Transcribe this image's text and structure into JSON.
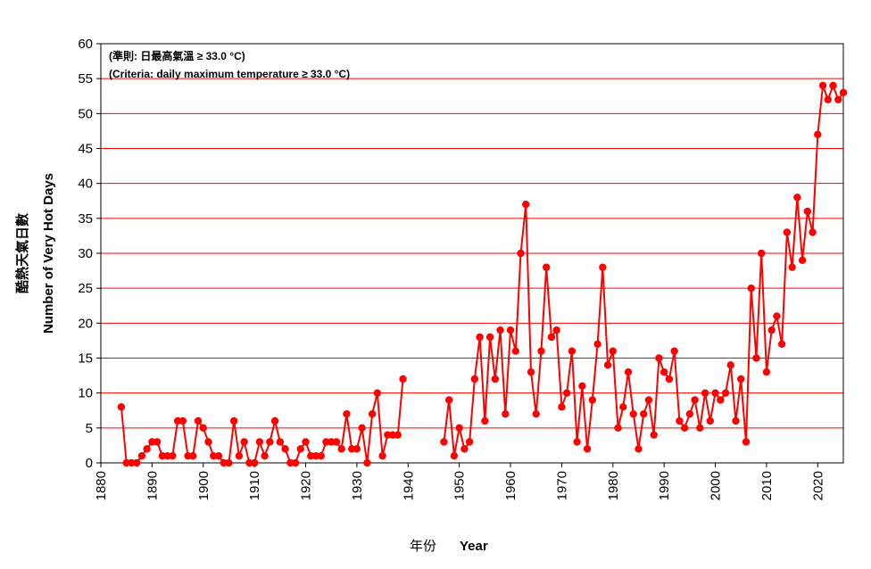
{
  "chart_data": {
    "type": "line",
    "ylabel_zh": "酷熱天氣日數",
    "ylabel_en": "Number of Very Hot Days",
    "xlabel_zh": "年份",
    "xlabel_en": "Year",
    "note_zh": "(準則: 日最高氣溫 ≥ 33.0 °C)",
    "note_en": "(Criteria: daily maximum temperature ≥ 33.0 °C)",
    "xlim": [
      1880,
      2025
    ],
    "ylim": [
      0,
      60
    ],
    "x_ticks": [
      1880,
      1890,
      1900,
      1910,
      1920,
      1930,
      1940,
      1950,
      1960,
      1970,
      1980,
      1990,
      2000,
      2010,
      2020
    ],
    "y_ticks": [
      0,
      5,
      10,
      15,
      20,
      25,
      30,
      35,
      40,
      45,
      50,
      55,
      60
    ],
    "grid": "horizontal",
    "series_color": "#ff0000",
    "series": [
      {
        "values": [
          [
            1884,
            8
          ],
          [
            1885,
            0
          ],
          [
            1886,
            0
          ],
          [
            1887,
            0
          ],
          [
            1888,
            1
          ],
          [
            1889,
            2
          ],
          [
            1890,
            3
          ],
          [
            1891,
            3
          ],
          [
            1892,
            1
          ],
          [
            1893,
            1
          ],
          [
            1894,
            1
          ],
          [
            1895,
            6
          ],
          [
            1896,
            6
          ],
          [
            1897,
            1
          ],
          [
            1898,
            1
          ],
          [
            1899,
            6
          ],
          [
            1900,
            5
          ],
          [
            1901,
            3
          ],
          [
            1902,
            1
          ],
          [
            1903,
            1
          ],
          [
            1904,
            0
          ],
          [
            1905,
            0
          ],
          [
            1906,
            6
          ],
          [
            1907,
            1
          ],
          [
            1908,
            3
          ],
          [
            1909,
            0
          ],
          [
            1910,
            0
          ],
          [
            1911,
            3
          ],
          [
            1912,
            1
          ],
          [
            1913,
            3
          ],
          [
            1914,
            6
          ],
          [
            1915,
            3
          ],
          [
            1916,
            2
          ],
          [
            1917,
            0
          ],
          [
            1918,
            0
          ],
          [
            1919,
            2
          ],
          [
            1920,
            3
          ],
          [
            1921,
            1
          ],
          [
            1922,
            1
          ],
          [
            1923,
            1
          ],
          [
            1924,
            3
          ],
          [
            1925,
            3
          ],
          [
            1926,
            3
          ],
          [
            1927,
            2
          ],
          [
            1928,
            7
          ],
          [
            1929,
            2
          ],
          [
            1930,
            2
          ],
          [
            1931,
            5
          ],
          [
            1932,
            0
          ],
          [
            1933,
            7
          ],
          [
            1934,
            10
          ],
          [
            1935,
            1
          ],
          [
            1936,
            4
          ],
          [
            1937,
            4
          ],
          [
            1938,
            4
          ],
          [
            1939,
            12
          ]
        ]
      },
      {
        "values": [
          [
            1947,
            3
          ],
          [
            1948,
            9
          ],
          [
            1949,
            1
          ],
          [
            1950,
            5
          ],
          [
            1951,
            2
          ],
          [
            1952,
            3
          ],
          [
            1953,
            12
          ],
          [
            1954,
            18
          ],
          [
            1955,
            6
          ],
          [
            1956,
            18
          ],
          [
            1957,
            12
          ],
          [
            1958,
            19
          ],
          [
            1959,
            7
          ],
          [
            1960,
            19
          ],
          [
            1961,
            16
          ],
          [
            1962,
            30
          ],
          [
            1963,
            37
          ],
          [
            1964,
            13
          ],
          [
            1965,
            7
          ],
          [
            1966,
            16
          ],
          [
            1967,
            28
          ],
          [
            1968,
            18
          ],
          [
            1969,
            19
          ],
          [
            1970,
            8
          ],
          [
            1971,
            10
          ],
          [
            1972,
            16
          ],
          [
            1973,
            3
          ],
          [
            1974,
            11
          ],
          [
            1975,
            2
          ],
          [
            1976,
            9
          ],
          [
            1977,
            17
          ],
          [
            1978,
            28
          ],
          [
            1979,
            14
          ],
          [
            1980,
            16
          ],
          [
            1981,
            5
          ],
          [
            1982,
            8
          ],
          [
            1983,
            13
          ],
          [
            1984,
            7
          ],
          [
            1985,
            2
          ],
          [
            1986,
            7
          ],
          [
            1987,
            9
          ],
          [
            1988,
            4
          ],
          [
            1989,
            15
          ],
          [
            1990,
            13
          ],
          [
            1991,
            12
          ],
          [
            1992,
            16
          ],
          [
            1993,
            6
          ],
          [
            1994,
            5
          ],
          [
            1995,
            7
          ],
          [
            1996,
            9
          ],
          [
            1997,
            5
          ],
          [
            1998,
            10
          ],
          [
            1999,
            6
          ],
          [
            2000,
            10
          ],
          [
            2001,
            9
          ],
          [
            2002,
            10
          ],
          [
            2003,
            14
          ],
          [
            2004,
            6
          ],
          [
            2005,
            12
          ],
          [
            2006,
            3
          ],
          [
            2007,
            25
          ],
          [
            2008,
            15
          ],
          [
            2009,
            30
          ],
          [
            2010,
            13
          ],
          [
            2011,
            19
          ],
          [
            2012,
            21
          ],
          [
            2013,
            17
          ],
          [
            2014,
            33
          ],
          [
            2015,
            28
          ],
          [
            2016,
            38
          ],
          [
            2017,
            29
          ],
          [
            2018,
            36
          ],
          [
            2019,
            33
          ],
          [
            2020,
            47
          ],
          [
            2021,
            54
          ],
          [
            2022,
            52
          ],
          [
            2023,
            54
          ],
          [
            2024,
            52
          ],
          [
            2025,
            53
          ]
        ]
      }
    ]
  }
}
